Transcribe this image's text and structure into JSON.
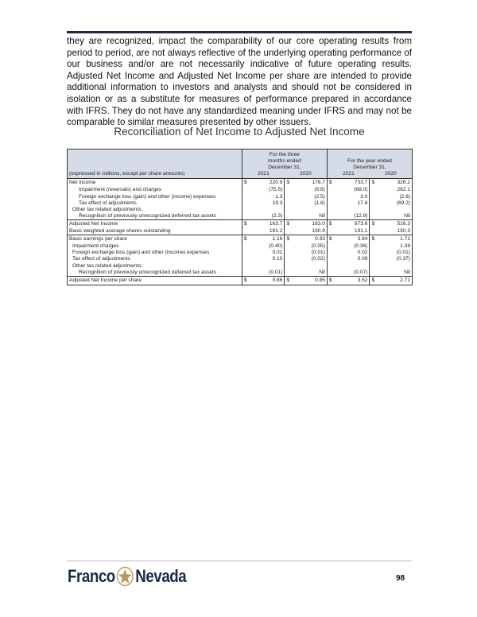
{
  "intro": "they are recognized, impact the comparability of our core operating results from period to period, are not always reflective of the underlying operating performance of our business and/or are not necessarily indicative of future operating results. Adjusted Net Income and Adjusted Net Income per share are intended to provide additional information to investors and analysts and should not be considered in isolation or as a substitute for measures of performance prepared in accordance with IFRS. They do not have any standardized meaning under IFRS and may not be comparable to similar measures presented by other issuers.",
  "table_title": "Reconciliation of Net Income to Adjusted Net Income",
  "header": {
    "units": "(expressed in millions, except per share amounts)",
    "three_months": "For the three months ended December 31,",
    "year": "For the year ended December 31,",
    "years": [
      "2021",
      "2020",
      "2021",
      "2020"
    ]
  },
  "groups": [
    {
      "rows": [
        {
          "label": "Net income",
          "indent": 0,
          "dollar": true,
          "values": [
            "220.9",
            "176.7",
            "733.7",
            "326.2"
          ]
        },
        {
          "label": "Impairment (reversals) and charges",
          "indent": 2,
          "values": [
            "(75.5)",
            "(9.6)",
            "(68.0)",
            "262.1"
          ]
        },
        {
          "label": "Foreign exchange loss (gain) and other (income) expenses",
          "indent": 2,
          "values": [
            "1.3",
            "(2.5)",
            "3.0",
            "(2.8)"
          ]
        },
        {
          "label": "Tax effect of adjustments",
          "indent": 2,
          "values": [
            "19.3",
            "(1.6)",
            "17.8",
            "(69.2)"
          ]
        },
        {
          "label": "Other tax related adjustments:",
          "indent": 1,
          "values": [
            "",
            "",
            "",
            ""
          ]
        },
        {
          "label": "Recognition of previously unrecognized deferred tax assets",
          "indent": 2,
          "values": [
            "(2.3)",
            "Nil",
            "(12.9)",
            "Nil"
          ]
        }
      ]
    },
    {
      "rows": [
        {
          "label": "Adjusted Net Income",
          "indent": 0,
          "dollar": true,
          "values": [
            "163.7",
            "163.0",
            "673.6",
            "516.3"
          ]
        },
        {
          "label": "Basic weighted average shares outstanding",
          "indent": 0,
          "values": [
            "191.2",
            "190.9",
            "191.1",
            "190.3"
          ]
        }
      ]
    },
    {
      "rows": [
        {
          "label": "Basic earnings per share",
          "indent": 0,
          "dollar": true,
          "values": [
            "1.16",
            "0.93",
            "3.84",
            "1.71"
          ]
        },
        {
          "label": "Impairment charges",
          "indent": 1,
          "values": [
            "(0.40)",
            "(0.05)",
            "(0.36)",
            "1.38"
          ]
        },
        {
          "label": "Foreign exchange loss (gain) and other (income) expenses",
          "indent": 1,
          "values": [
            "0.01",
            "(0.01)",
            "0.02",
            "(0.01)"
          ]
        },
        {
          "label": "Tax effect of adjustments",
          "indent": 1,
          "values": [
            "0.10",
            "(0.02)",
            "0.09",
            "(0.37)"
          ]
        },
        {
          "label": "Other tax related adjustments:",
          "indent": 1,
          "values": [
            "",
            "",
            "",
            ""
          ]
        },
        {
          "label": "Recognition of previously unrecognized deferred tax assets",
          "indent": 2,
          "values": [
            "(0.01)",
            "Nil",
            "(0.07)",
            "Nil"
          ]
        }
      ]
    },
    {
      "rows": [
        {
          "label": "Adjusted Net Income per share",
          "indent": 0,
          "dollar": true,
          "values": [
            "0.86",
            "0.85",
            "3.52",
            "2.71"
          ]
        }
      ]
    }
  ],
  "dollar_sign": "$",
  "footer": {
    "logo": "Franco Nevada",
    "logo_left": "Franco",
    "logo_right": "Nevada",
    "page": "98",
    "brand_color": "#1c2a4a",
    "star_color": "#b8995a"
  }
}
